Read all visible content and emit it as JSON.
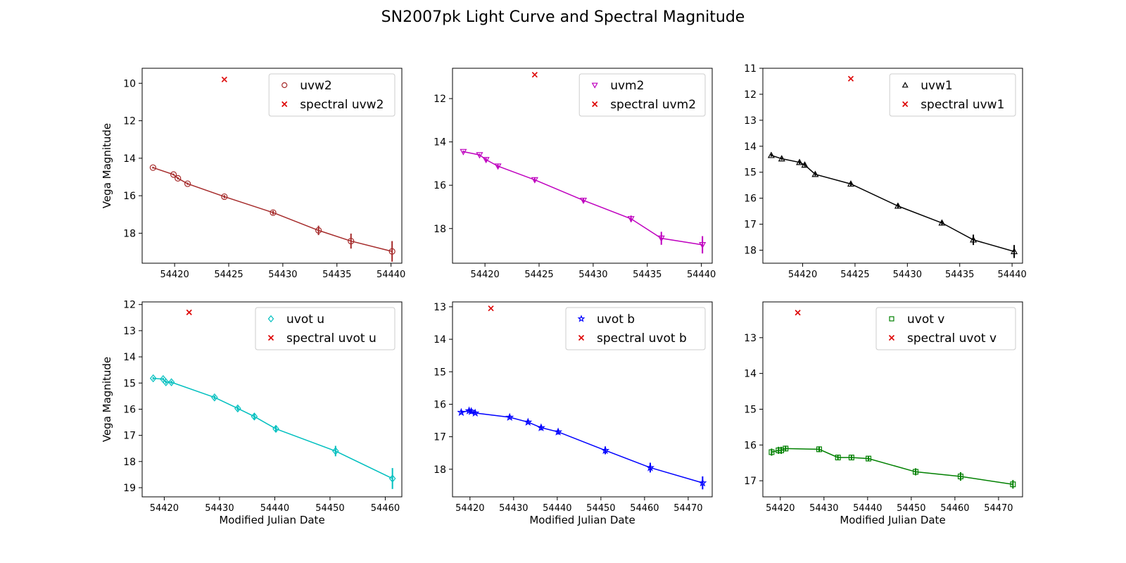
{
  "title": "SN2007pk Light Curve and Spectral Magnitude",
  "chart_data": [
    {
      "type": "line",
      "xlabel": "",
      "ylabel": "Vega Magnitude",
      "xlim": [
        54417.0,
        54441.0
      ],
      "ylim": [
        19.6,
        9.2
      ],
      "y_inverted": true,
      "xticks": [
        54420,
        54425,
        54430,
        54435,
        54440
      ],
      "yticks": [
        10,
        12,
        14,
        16,
        18
      ],
      "legend": "top-right",
      "series": [
        {
          "name": "uvw2",
          "color": "#a52a2a",
          "marker": "circle",
          "x": [
            54418.0,
            54419.9,
            54420.3,
            54421.2,
            54424.6,
            54429.1,
            54433.3,
            54436.3,
            54440.1
          ],
          "y": [
            14.5,
            14.87,
            15.07,
            15.36,
            16.05,
            16.9,
            17.85,
            18.42,
            18.97
          ],
          "err": [
            0.05,
            0.05,
            0.06,
            0.06,
            0.08,
            0.1,
            0.25,
            0.4,
            0.55
          ]
        },
        {
          "name": "spectral uvw2",
          "color": "#dd0000",
          "marker": "x",
          "x": [
            54424.6
          ],
          "y": [
            9.8
          ]
        }
      ]
    },
    {
      "type": "line",
      "xlabel": "",
      "ylabel": "",
      "xlim": [
        54417.0,
        54441.0
      ],
      "ylim": [
        19.6,
        10.6
      ],
      "y_inverted": true,
      "xticks": [
        54420,
        54425,
        54430,
        54435,
        54440
      ],
      "yticks": [
        12,
        14,
        16,
        18
      ],
      "legend": "top-right",
      "series": [
        {
          "name": "uvm2",
          "color": "#bf00bf",
          "marker": "triangle-down",
          "x": [
            54418.0,
            54419.5,
            54420.1,
            54421.2,
            54424.6,
            54429.1,
            54433.5,
            54436.3,
            54440.1
          ],
          "y": [
            14.45,
            14.6,
            14.82,
            15.12,
            15.75,
            16.7,
            17.55,
            18.45,
            18.75
          ],
          "err": [
            0.05,
            0.05,
            0.08,
            0.08,
            0.1,
            0.1,
            0.15,
            0.3,
            0.4
          ]
        },
        {
          "name": "spectral uvm2",
          "color": "#dd0000",
          "marker": "x",
          "x": [
            54424.6
          ],
          "y": [
            10.9
          ]
        }
      ]
    },
    {
      "type": "line",
      "xlabel": "",
      "ylabel": "",
      "xlim": [
        54416.2,
        54441.0
      ],
      "ylim": [
        18.5,
        11.0
      ],
      "y_inverted": true,
      "xticks": [
        54420,
        54425,
        54430,
        54435,
        54440
      ],
      "yticks": [
        11,
        12,
        13,
        14,
        15,
        16,
        17,
        18
      ],
      "legend": "top-right",
      "series": [
        {
          "name": "uvw1",
          "color": "#000000",
          "marker": "triangle-up",
          "x": [
            54417.0,
            54418.0,
            54419.7,
            54420.2,
            54421.2,
            54424.6,
            54429.1,
            54433.3,
            54436.3,
            54440.2
          ],
          "y": [
            14.35,
            14.48,
            14.62,
            14.72,
            15.08,
            15.45,
            16.3,
            16.95,
            17.6,
            18.05
          ],
          "err": [
            0.05,
            0.05,
            0.06,
            0.06,
            0.06,
            0.08,
            0.1,
            0.1,
            0.2,
            0.25
          ]
        },
        {
          "name": "spectral uvw1",
          "color": "#dd0000",
          "marker": "x",
          "x": [
            54424.6
          ],
          "y": [
            11.4
          ]
        }
      ]
    },
    {
      "type": "line",
      "xlabel": "Modified Julian Date",
      "ylabel": "Vega Magnitude",
      "xlim": [
        54416.0,
        54463.0
      ],
      "ylim": [
        19.35,
        11.9
      ],
      "y_inverted": true,
      "xticks": [
        54420,
        54430,
        54440,
        54450,
        54460
      ],
      "yticks": [
        12,
        13,
        14,
        15,
        16,
        17,
        18,
        19
      ],
      "legend": "top-right",
      "series": [
        {
          "name": "uvot u",
          "color": "#00bfbf",
          "marker": "diamond",
          "x": [
            54418.0,
            54419.8,
            54420.3,
            54421.3,
            54429.1,
            54433.3,
            54436.3,
            54440.2,
            54451.0,
            54461.3
          ],
          "y": [
            14.82,
            14.85,
            14.97,
            14.97,
            15.55,
            15.97,
            16.28,
            16.75,
            17.6,
            18.65
          ],
          "err": [
            0.05,
            0.05,
            0.06,
            0.06,
            0.07,
            0.08,
            0.1,
            0.1,
            0.2,
            0.4
          ]
        },
        {
          "name": "spectral uvot u",
          "color": "#dd0000",
          "marker": "x",
          "x": [
            54424.5
          ],
          "y": [
            12.3
          ]
        }
      ]
    },
    {
      "type": "line",
      "xlabel": "Modified Julian Date",
      "ylabel": "",
      "xlim": [
        54416.0,
        54475.5
      ],
      "ylim": [
        18.85,
        12.85
      ],
      "y_inverted": true,
      "xticks": [
        54420,
        54430,
        54440,
        54450,
        54460,
        54470
      ],
      "yticks": [
        13,
        14,
        15,
        16,
        17,
        18
      ],
      "legend": "top-right",
      "series": [
        {
          "name": "uvot b",
          "color": "#0000ff",
          "marker": "star",
          "x": [
            54418.0,
            54419.8,
            54420.3,
            54421.2,
            54429.1,
            54433.3,
            54436.3,
            54440.2,
            54451.0,
            54461.3,
            54473.3
          ],
          "y": [
            16.25,
            16.2,
            16.22,
            16.27,
            16.4,
            16.55,
            16.72,
            16.85,
            17.42,
            17.95,
            18.42
          ],
          "err": [
            0.05,
            0.05,
            0.05,
            0.05,
            0.06,
            0.06,
            0.08,
            0.08,
            0.12,
            0.15,
            0.2
          ]
        },
        {
          "name": "spectral uvot b",
          "color": "#dd0000",
          "marker": "x",
          "x": [
            54424.8
          ],
          "y": [
            13.05
          ]
        }
      ]
    },
    {
      "type": "line",
      "xlabel": "Modified Julian Date",
      "ylabel": "",
      "xlim": [
        54416.0,
        54475.5
      ],
      "ylim": [
        17.45,
        12.0
      ],
      "y_inverted": true,
      "xticks": [
        54420,
        54430,
        54440,
        54450,
        54460,
        54470
      ],
      "yticks": [
        13,
        14,
        15,
        16,
        17
      ],
      "legend": "top-right",
      "series": [
        {
          "name": "uvot v",
          "color": "#008000",
          "marker": "square",
          "x": [
            54418.0,
            54419.6,
            54420.2,
            54421.2,
            54428.9,
            54433.2,
            54436.3,
            54440.2,
            54451.0,
            54461.3,
            54473.3
          ],
          "y": [
            16.2,
            16.15,
            16.15,
            16.1,
            16.12,
            16.35,
            16.35,
            16.38,
            16.75,
            16.88,
            17.1
          ],
          "err": [
            0.1,
            0.1,
            0.1,
            0.08,
            0.08,
            0.06,
            0.06,
            0.06,
            0.1,
            0.12,
            0.12
          ]
        },
        {
          "name": "spectral uvot v",
          "color": "#dd0000",
          "marker": "x",
          "x": [
            54424.0
          ],
          "y": [
            12.3
          ]
        }
      ]
    }
  ]
}
